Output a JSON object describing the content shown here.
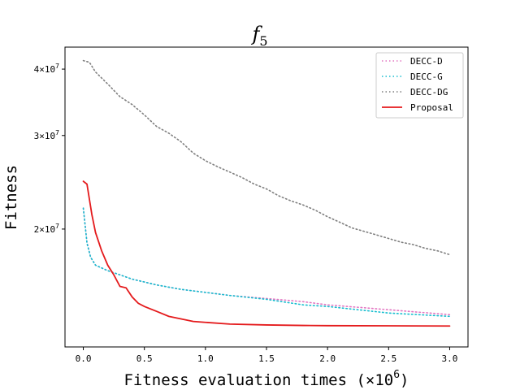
{
  "chart_data": {
    "type": "line",
    "title": "f",
    "title_subscript": "5",
    "xlabel": "Fitness evaluation times (×10",
    "xlabel_superscript": "6",
    "xlabel_suffix": ")",
    "ylabel": "Fitness",
    "xlim": [
      -0.15,
      3.15
    ],
    "ylim": [
      12000000,
      44000000
    ],
    "yscale": "log",
    "x_ticks": [
      {
        "value": 0.0,
        "label": "0.0"
      },
      {
        "value": 0.5,
        "label": "0.5"
      },
      {
        "value": 1.0,
        "label": "1.0"
      },
      {
        "value": 1.5,
        "label": "1.5"
      },
      {
        "value": 2.0,
        "label": "2.0"
      },
      {
        "value": 2.5,
        "label": "2.5"
      },
      {
        "value": 3.0,
        "label": "3.0"
      }
    ],
    "y_ticks": [
      {
        "value": 20000000,
        "mant": "2",
        "base": "×10",
        "exp": "7"
      },
      {
        "value": 30000000,
        "mant": "3",
        "base": "×10",
        "exp": "7"
      },
      {
        "value": 40000000,
        "mant": "4",
        "base": "×10",
        "exp": "7"
      }
    ],
    "grid": false,
    "legend_position": "top-right",
    "series": [
      {
        "name": "DECC-D",
        "color": "#e377c2",
        "dash": "dotted",
        "x": [
          0.0,
          0.03,
          0.06,
          0.1,
          0.15,
          0.2,
          0.3,
          0.4,
          0.5,
          0.6,
          0.8,
          1.0,
          1.2,
          1.5,
          1.8,
          2.0,
          2.5,
          3.0
        ],
        "y": [
          21900000,
          18900000,
          17700000,
          17100000,
          16900000,
          16700000,
          16400000,
          16100000,
          15900000,
          15700000,
          15400000,
          15200000,
          15000000,
          14800000,
          14600000,
          14400000,
          14100000,
          13800000
        ]
      },
      {
        "name": "DECC-G",
        "color": "#17becf",
        "dash": "dotted",
        "x": [
          0.0,
          0.03,
          0.06,
          0.1,
          0.15,
          0.2,
          0.3,
          0.4,
          0.5,
          0.6,
          0.8,
          1.0,
          1.2,
          1.5,
          1.8,
          2.0,
          2.5,
          3.0
        ],
        "y": [
          21900000,
          18800000,
          17700000,
          17100000,
          16900000,
          16700000,
          16400000,
          16100000,
          15900000,
          15700000,
          15400000,
          15200000,
          15000000,
          14750000,
          14400000,
          14300000,
          13900000,
          13700000
        ]
      },
      {
        "name": "DECC-DG",
        "color": "#7f7f7f",
        "dash": "dotted",
        "x": [
          0.0,
          0.05,
          0.1,
          0.2,
          0.3,
          0.4,
          0.5,
          0.6,
          0.7,
          0.8,
          0.9,
          1.0,
          1.1,
          1.2,
          1.3,
          1.4,
          1.5,
          1.6,
          1.7,
          1.8,
          1.9,
          2.0,
          2.1,
          2.2,
          2.3,
          2.4,
          2.5,
          2.6,
          2.7,
          2.8,
          2.9,
          3.0
        ],
        "y": [
          41500000,
          41200000,
          39500000,
          37500000,
          35500000,
          34300000,
          32800000,
          31200000,
          30300000,
          29200000,
          27800000,
          26900000,
          26200000,
          25600000,
          25000000,
          24300000,
          23800000,
          23100000,
          22600000,
          22200000,
          21700000,
          21100000,
          20600000,
          20100000,
          19800000,
          19500000,
          19200000,
          18900000,
          18700000,
          18400000,
          18200000,
          17900000
        ]
      },
      {
        "name": "Proposal",
        "color": "#e41a1c",
        "dash": "solid",
        "x": [
          0.0,
          0.03,
          0.07,
          0.1,
          0.15,
          0.2,
          0.25,
          0.3,
          0.35,
          0.4,
          0.45,
          0.5,
          0.6,
          0.7,
          0.8,
          0.9,
          1.0,
          1.2,
          1.5,
          1.8,
          2.0,
          2.5,
          3.0
        ],
        "y": [
          24600000,
          24300000,
          21300000,
          19700000,
          18200000,
          17100000,
          16400000,
          15600000,
          15500000,
          14900000,
          14500000,
          14300000,
          14000000,
          13700000,
          13550000,
          13400000,
          13350000,
          13250000,
          13200000,
          13170000,
          13160000,
          13150000,
          13140000
        ]
      }
    ]
  }
}
